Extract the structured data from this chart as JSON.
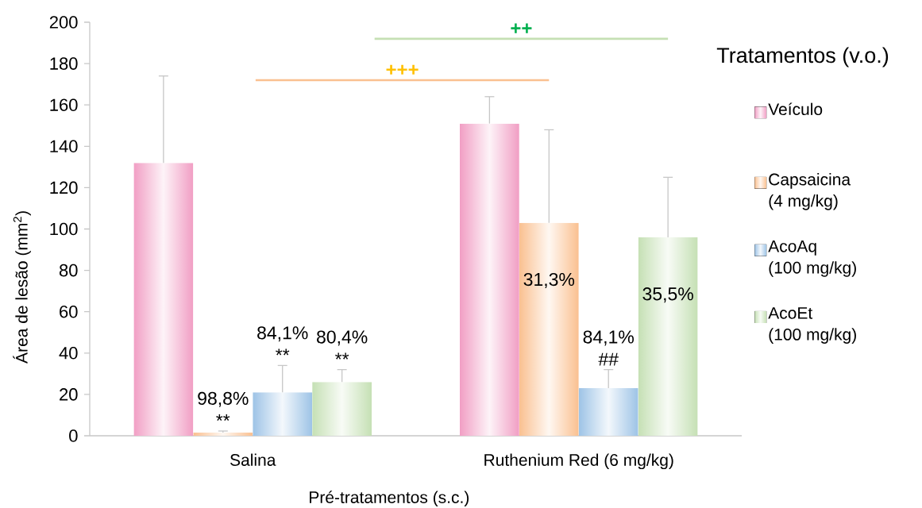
{
  "chart_data": {
    "type": "bar",
    "xlabel": "Pré-tratamentos (s.c.)",
    "ylabel": "Área de lesão (mm$^{2}$)",
    "legend_title": "Tratamentos (v.o.)",
    "categories": [
      "Salina",
      "Ruthenium Red (6 mg/kg)"
    ],
    "series": [
      {
        "name": "Veículo",
        "color": "#f19ec4",
        "values": [
          132,
          151
        ],
        "errors": [
          [
            132,
            174
          ],
          [
            151,
            164
          ]
        ]
      },
      {
        "name": "Capsaicina\n(4 mg/kg)",
        "color": "#fac090",
        "values": [
          1.5,
          103
        ],
        "errors": [
          [
            1.5,
            2.3
          ],
          [
            103,
            148
          ]
        ]
      },
      {
        "name": "AcoAq\n(100 mg/kg)",
        "color": "#9dc3e6",
        "values": [
          21,
          23
        ],
        "errors": [
          [
            21,
            34
          ],
          [
            23,
            32
          ]
        ]
      },
      {
        "name": "AcoEt\n(100 mg/kg)",
        "color": "#c5e0b4",
        "values": [
          26,
          96
        ],
        "errors": [
          [
            26,
            32
          ],
          [
            96,
            125
          ]
        ]
      }
    ],
    "ylim": [
      0,
      200
    ],
    "yticks": [
      0,
      20,
      40,
      60,
      80,
      100,
      120,
      140,
      160,
      180,
      200
    ],
    "legend": "right",
    "ref_lines": [
      {
        "axis": "y",
        "value": 172,
        "label": "+++",
        "color": "#fac090"
      },
      {
        "axis": "y",
        "value": 192,
        "label": "++",
        "color": "#c5e0b4"
      }
    ],
    "annotations": [
      "98,8%\n**",
      "84,1%\n**",
      "80,4%\n**",
      "31,3%",
      "84,1%\n##",
      "35,5%"
    ]
  }
}
